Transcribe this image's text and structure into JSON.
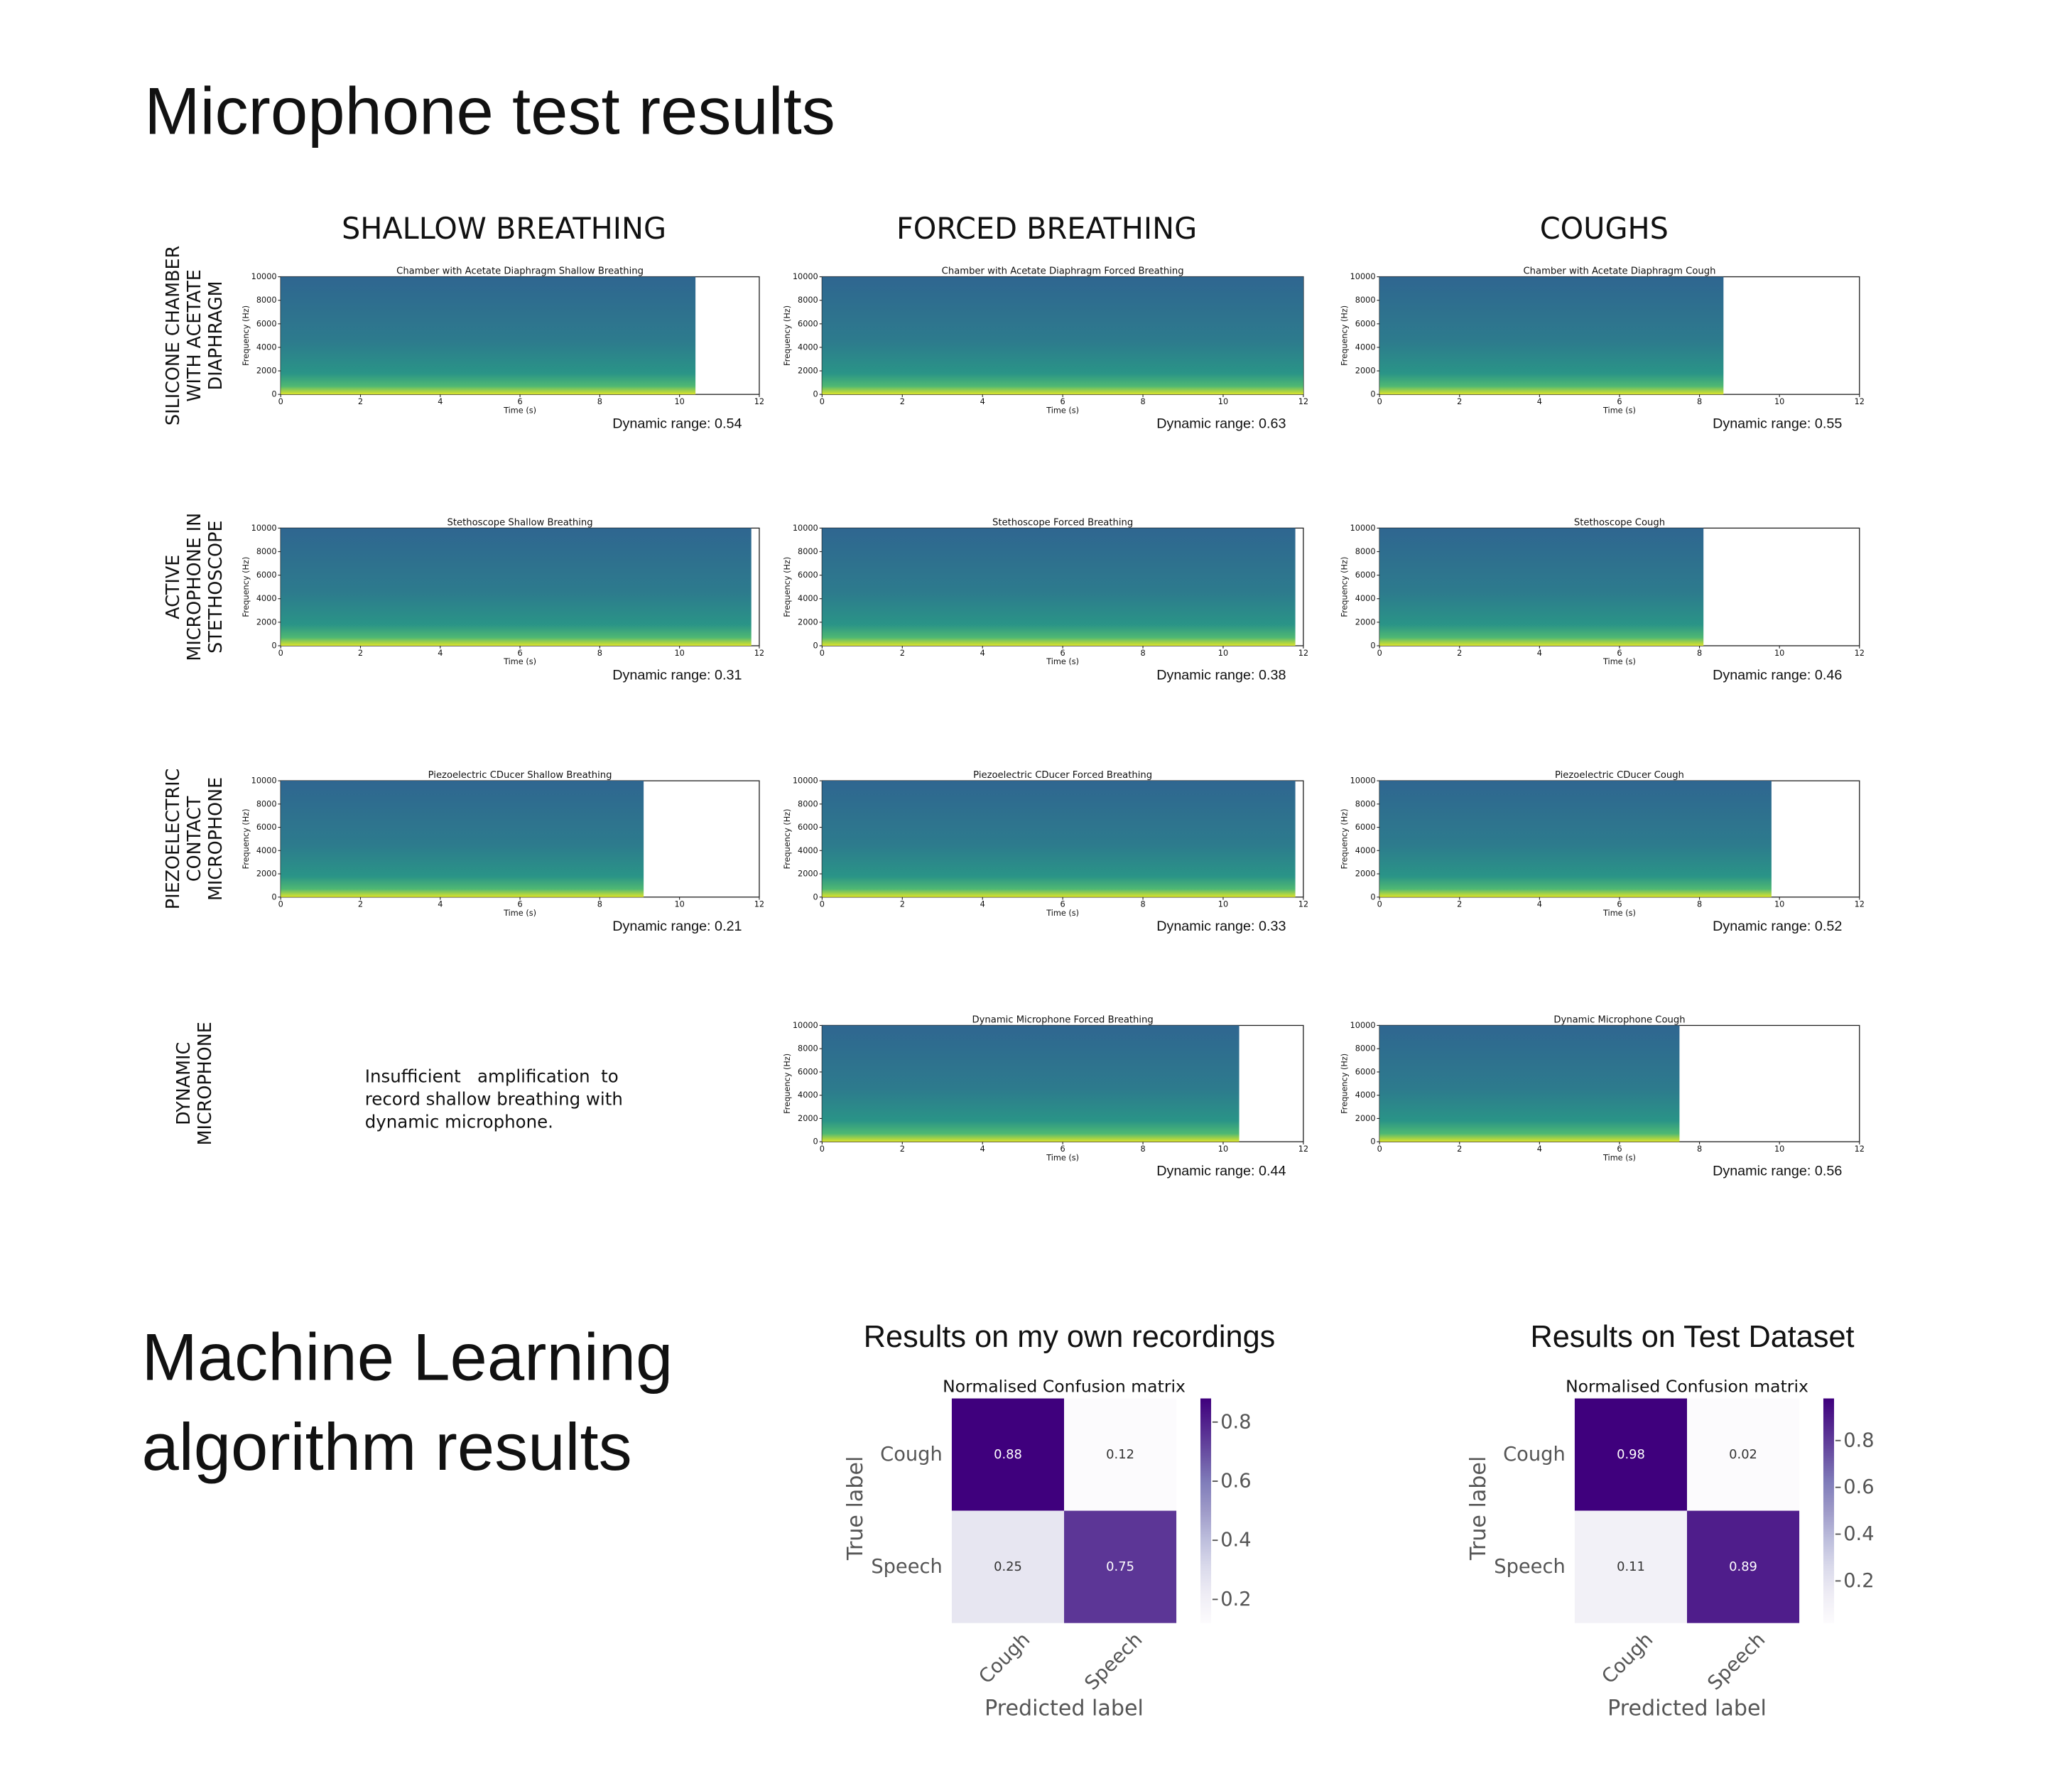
{
  "title": "Microphone test results",
  "columns": [
    "SHALLOW BREATHING",
    "FORCED BREATHING",
    "COUGHS"
  ],
  "rows": [
    {
      "label": [
        "SILICONE CHAMBER",
        "WITH ACETATE",
        "DIAPHRAGM"
      ],
      "panels": [
        {
          "type": "spectrogram",
          "title": "Chamber with Acetate Diaphragm Shallow Breathing",
          "xlabel": "Time (s)",
          "ylabel": "Frequency (Hz)",
          "xlim": [
            0,
            12
          ],
          "ylim": [
            0,
            10000
          ],
          "xticks": [
            0,
            2,
            4,
            6,
            8,
            10,
            12
          ],
          "yticks": [
            0,
            2000,
            4000,
            6000,
            8000,
            10000
          ],
          "duration": 10.4,
          "caption": "Dynamic range: 0.54"
        },
        {
          "type": "spectrogram",
          "title": "Chamber with Acetate Diaphragm Forced Breathing",
          "xlabel": "Time (s)",
          "ylabel": "Frequency (Hz)",
          "xlim": [
            0,
            12
          ],
          "ylim": [
            0,
            10000
          ],
          "xticks": [
            0,
            2,
            4,
            6,
            8,
            10,
            12
          ],
          "yticks": [
            0,
            2000,
            4000,
            6000,
            8000,
            10000
          ],
          "duration": 12,
          "caption": "Dynamic range: 0.63"
        },
        {
          "type": "spectrogram",
          "title": "Chamber with Acetate Diaphragm Cough",
          "xlabel": "Time (s)",
          "ylabel": "Frequency (Hz)",
          "xlim": [
            0,
            12
          ],
          "ylim": [
            0,
            10000
          ],
          "xticks": [
            0,
            2,
            4,
            6,
            8,
            10,
            12
          ],
          "yticks": [
            0,
            2000,
            4000,
            6000,
            8000,
            10000
          ],
          "duration": 8.6,
          "caption": "Dynamic range: 0.55"
        }
      ]
    },
    {
      "label": [
        "ACTIVE",
        "MICROPHONE IN",
        "STETHOSCOPE"
      ],
      "panels": [
        {
          "type": "spectrogram",
          "title": "Stethoscope Shallow Breathing",
          "xlabel": "Time (s)",
          "ylabel": "Frequency (Hz)",
          "xlim": [
            0,
            12
          ],
          "ylim": [
            0,
            10000
          ],
          "xticks": [
            0,
            2,
            4,
            6,
            8,
            10,
            12
          ],
          "yticks": [
            0,
            2000,
            4000,
            6000,
            8000,
            10000
          ],
          "duration": 11.8,
          "caption": "Dynamic range: 0.31"
        },
        {
          "type": "spectrogram",
          "title": "Stethoscope Forced Breathing",
          "xlabel": "Time (s)",
          "ylabel": "Frequency (Hz)",
          "xlim": [
            0,
            12
          ],
          "ylim": [
            0,
            10000
          ],
          "xticks": [
            0,
            2,
            4,
            6,
            8,
            10,
            12
          ],
          "yticks": [
            0,
            2000,
            4000,
            6000,
            8000,
            10000
          ],
          "duration": 11.8,
          "caption": "Dynamic range: 0.38"
        },
        {
          "type": "spectrogram",
          "title": "Stethoscope Cough",
          "xlabel": "Time (s)",
          "ylabel": "Frequency (Hz)",
          "xlim": [
            0,
            12
          ],
          "ylim": [
            0,
            10000
          ],
          "xticks": [
            0,
            2,
            4,
            6,
            8,
            10,
            12
          ],
          "yticks": [
            0,
            2000,
            4000,
            6000,
            8000,
            10000
          ],
          "duration": 8.1,
          "caption": "Dynamic range: 0.46"
        }
      ]
    },
    {
      "label": [
        "PIEZOELECTRIC",
        "CONTACT",
        "MICROPHONE"
      ],
      "panels": [
        {
          "type": "spectrogram",
          "title": "Piezoelectric CDucer Shallow Breathing",
          "xlabel": "Time (s)",
          "ylabel": "Frequency (Hz)",
          "xlim": [
            0,
            12
          ],
          "ylim": [
            0,
            10000
          ],
          "xticks": [
            0,
            2,
            4,
            6,
            8,
            10,
            12
          ],
          "yticks": [
            0,
            2000,
            4000,
            6000,
            8000,
            10000
          ],
          "duration": 9.1,
          "caption": "Dynamic range: 0.21"
        },
        {
          "type": "spectrogram",
          "title": "Piezoelectric CDucer Forced Breathing",
          "xlabel": "Time (s)",
          "ylabel": "Frequency (Hz)",
          "xlim": [
            0,
            12
          ],
          "ylim": [
            0,
            10000
          ],
          "xticks": [
            0,
            2,
            4,
            6,
            8,
            10,
            12
          ],
          "yticks": [
            0,
            2000,
            4000,
            6000,
            8000,
            10000
          ],
          "duration": 11.8,
          "caption": "Dynamic range: 0.33"
        },
        {
          "type": "spectrogram",
          "title": "Piezoelectric CDucer Cough",
          "xlabel": "Time (s)",
          "ylabel": "Frequency (Hz)",
          "xlim": [
            0,
            12
          ],
          "ylim": [
            0,
            10000
          ],
          "xticks": [
            0,
            2,
            4,
            6,
            8,
            10,
            12
          ],
          "yticks": [
            0,
            2000,
            4000,
            6000,
            8000,
            10000
          ],
          "duration": 9.8,
          "caption": "Dynamic range: 0.52"
        }
      ]
    },
    {
      "label": [
        "DYNAMIC",
        "MICROPHONE"
      ],
      "note": [
        "Insufficient   amplification  to",
        "record shallow breathing with",
        "dynamic microphone."
      ],
      "panels": [
        {
          "type": "spectrogram",
          "title": "Dynamic Microphone Forced Breathing",
          "xlabel": "Time (s)",
          "ylabel": "Frequency (Hz)",
          "xlim": [
            0,
            12
          ],
          "ylim": [
            0,
            10000
          ],
          "xticks": [
            0,
            2,
            4,
            6,
            8,
            10,
            12
          ],
          "yticks": [
            0,
            2000,
            4000,
            6000,
            8000,
            10000
          ],
          "duration": 10.4,
          "caption": "Dynamic range: 0.44"
        },
        {
          "type": "spectrogram",
          "title": "Dynamic Microphone Cough",
          "xlabel": "Time (s)",
          "ylabel": "Frequency (Hz)",
          "xlim": [
            0,
            12
          ],
          "ylim": [
            0,
            10000
          ],
          "xticks": [
            0,
            2,
            4,
            6,
            8,
            10,
            12
          ],
          "yticks": [
            0,
            2000,
            4000,
            6000,
            8000,
            10000
          ],
          "duration": 7.5,
          "caption": "Dynamic range: 0.56"
        }
      ]
    }
  ],
  "ml": {
    "title": [
      "Machine Learning",
      "algorithm results"
    ],
    "matrices": [
      {
        "type": "heatmap",
        "subtitle": "Results on my own recordings",
        "title": "Normalised Confusion matrix",
        "x_categories": [
          "Cough",
          "Speech"
        ],
        "y_categories": [
          "Cough",
          "Speech"
        ],
        "values": [
          [
            0.88,
            0.12
          ],
          [
            0.25,
            0.75
          ]
        ],
        "xlabel": "Predicted label",
        "ylabel": "True label",
        "colormap": "Purples",
        "clim": [
          0.12,
          0.88
        ],
        "cticks": [
          0.2,
          0.4,
          0.6,
          0.8
        ]
      },
      {
        "type": "heatmap",
        "subtitle": "Results on Test Dataset",
        "title": "Normalised Confusion matrix",
        "x_categories": [
          "Cough",
          "Speech"
        ],
        "y_categories": [
          "Cough",
          "Speech"
        ],
        "values": [
          [
            0.98,
            0.02
          ],
          [
            0.11,
            0.89
          ]
        ],
        "xlabel": "Predicted label",
        "ylabel": "True label",
        "colormap": "Purples",
        "clim": [
          0.02,
          0.98
        ],
        "cticks": [
          0.2,
          0.4,
          0.6,
          0.8
        ]
      }
    ]
  }
}
